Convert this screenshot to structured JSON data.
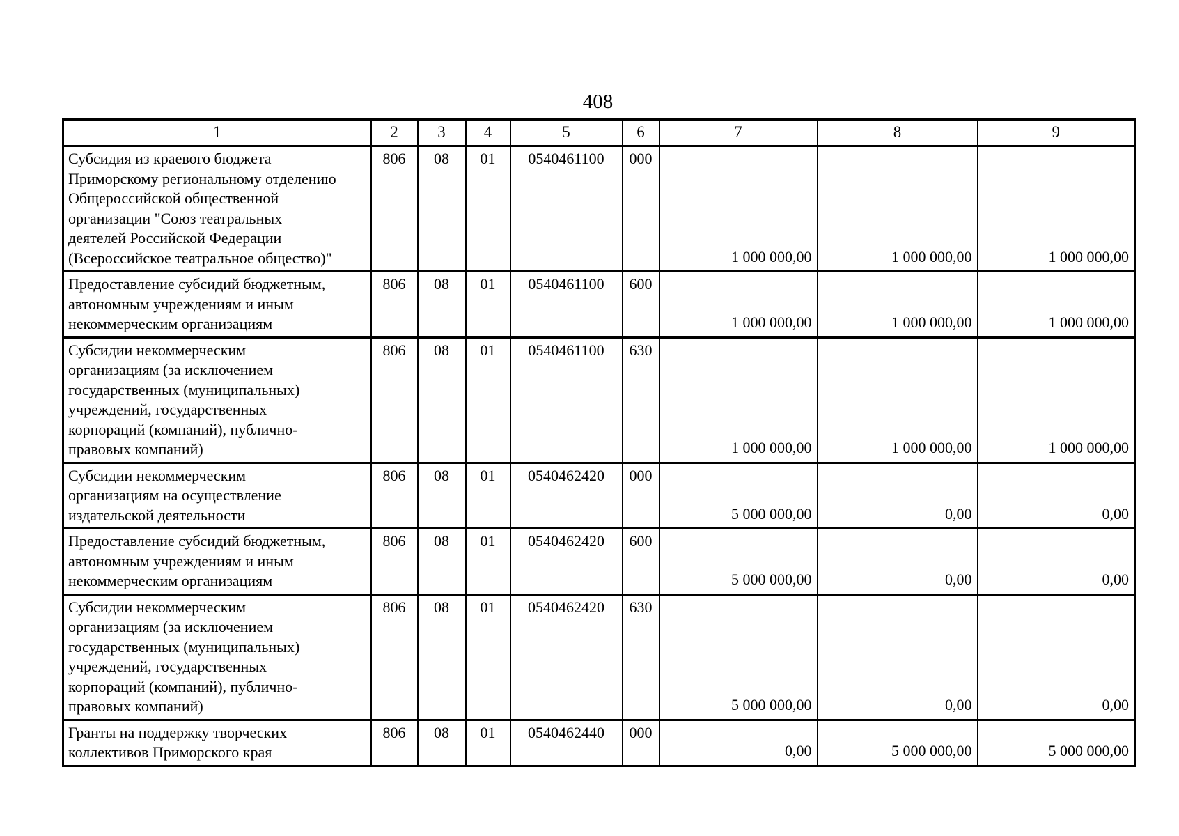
{
  "page_number": "408",
  "table": {
    "headers": [
      "1",
      "2",
      "3",
      "4",
      "5",
      "6",
      "7",
      "8",
      "9"
    ],
    "rows": [
      {
        "name": "Субсидия из краевого бюджета\nПриморскому региональному отделению\nОбщероссийской общественной\nорганизации \"Союз театральных\nдеятелей Российской Федерации\n(Всероссийское театральное общество)\"",
        "grbs": "806",
        "razdel": "08",
        "podrazdel": "01",
        "tsst": "0540461100",
        "vr": "000",
        "amount1": "1 000 000,00",
        "amount2": "1 000 000,00",
        "amount3": "1 000 000,00"
      },
      {
        "name": "Предоставление субсидий бюджетным,\nавтономным учреждениям и иным\nнекоммерческим организациям",
        "grbs": "806",
        "razdel": "08",
        "podrazdel": "01",
        "tsst": "0540461100",
        "vr": "600",
        "amount1": "1 000 000,00",
        "amount2": "1 000 000,00",
        "amount3": "1 000 000,00"
      },
      {
        "name": "Субсидии некоммерческим\nорганизациям (за исключением\nгосударственных (муниципальных)\nучреждений, государственных\nкорпораций (компаний), публично-\nправовых компаний)",
        "grbs": "806",
        "razdel": "08",
        "podrazdel": "01",
        "tsst": "0540461100",
        "vr": "630",
        "amount1": "1 000 000,00",
        "amount2": "1 000 000,00",
        "amount3": "1 000 000,00"
      },
      {
        "name": "Субсидии некоммерческим\nорганизациям на осуществление\nиздательской деятельности",
        "grbs": "806",
        "razdel": "08",
        "podrazdel": "01",
        "tsst": "0540462420",
        "vr": "000",
        "amount1": "5 000 000,00",
        "amount2": "0,00",
        "amount3": "0,00"
      },
      {
        "name": "Предоставление субсидий бюджетным,\nавтономным учреждениям и иным\nнекоммерческим организациям",
        "grbs": "806",
        "razdel": "08",
        "podrazdel": "01",
        "tsst": "0540462420",
        "vr": "600",
        "amount1": "5 000 000,00",
        "amount2": "0,00",
        "amount3": "0,00"
      },
      {
        "name": "Субсидии некоммерческим\nорганизациям (за исключением\nгосударственных (муниципальных)\nучреждений, государственных\nкорпораций (компаний), публично-\nправовых компаний)",
        "grbs": "806",
        "razdel": "08",
        "podrazdel": "01",
        "tsst": "0540462420",
        "vr": "630",
        "amount1": "5 000 000,00",
        "amount2": "0,00",
        "amount3": "0,00"
      },
      {
        "name": "Гранты на поддержку творческих\nколлективов Приморского края",
        "grbs": "806",
        "razdel": "08",
        "podrazdel": "01",
        "tsst": "0540462440",
        "vr": "000",
        "amount1": "0,00",
        "amount2": "5 000 000,00",
        "amount3": "5 000 000,00"
      }
    ]
  }
}
